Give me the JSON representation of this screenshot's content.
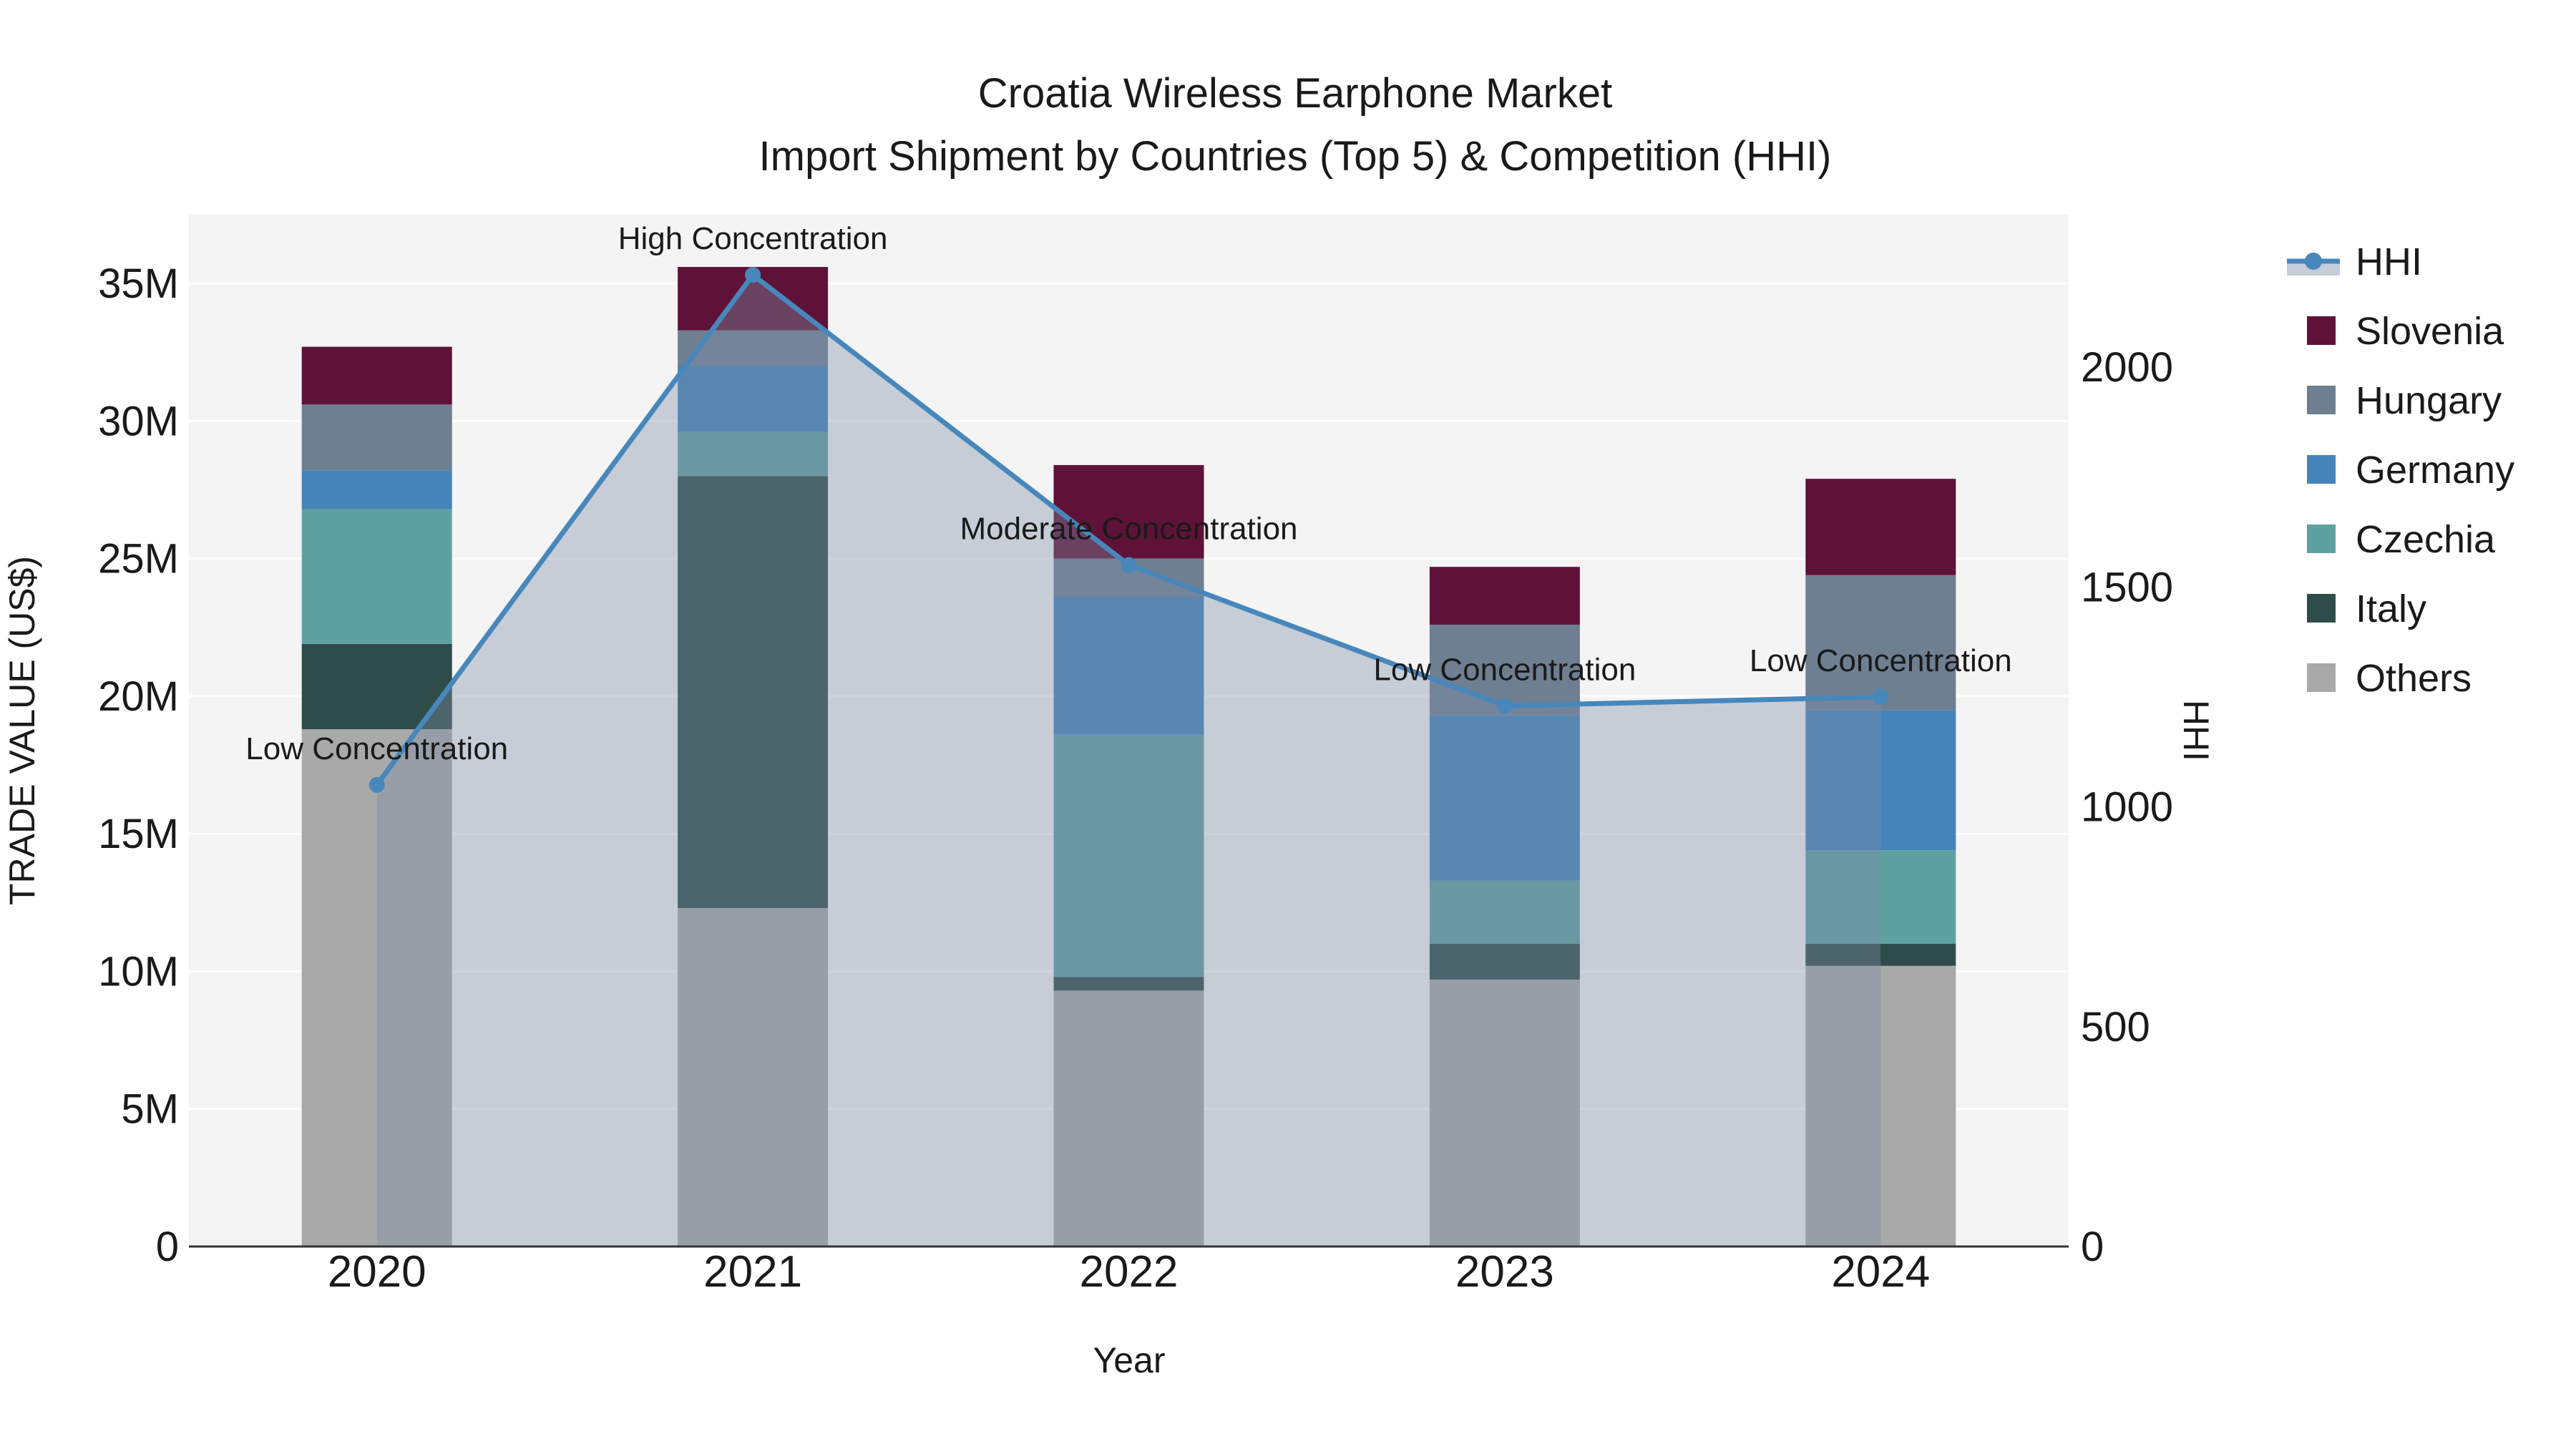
{
  "title": {
    "line1": "Croatia Wireless Earphone Market",
    "line2": "Import Shipment by Countries (Top 5) & Competition (HHI)"
  },
  "axes": {
    "x": {
      "title": "Year",
      "categories": [
        "2020",
        "2021",
        "2022",
        "2023",
        "2024"
      ]
    },
    "y_left": {
      "title": "TRADE VALUE (US$)",
      "tick_labels": [
        "0",
        "5M",
        "10M",
        "15M",
        "20M",
        "25M",
        "30M",
        "35M"
      ],
      "tick_values": [
        0,
        5,
        10,
        15,
        20,
        25,
        30,
        35
      ],
      "range": [
        0,
        37.5
      ],
      "unit": "million US$"
    },
    "y_right": {
      "title": "HHI",
      "tick_labels": [
        "0",
        "500",
        "1000",
        "1500",
        "2000"
      ],
      "tick_values": [
        0,
        500,
        1000,
        1500,
        2000
      ],
      "range": [
        0,
        2347
      ]
    }
  },
  "chart_data": {
    "type": "bar+line",
    "title": "Croatia Wireless Earphone Market — Import Shipment by Countries (Top 5) & Competition (HHI)",
    "xlabel": "Year",
    "ylabel_left": "TRADE VALUE (US$)",
    "ylabel_right": "HHI",
    "categories": [
      "2020",
      "2021",
      "2022",
      "2023",
      "2024"
    ],
    "stack_order_note": "series listed bottom-to-top of the stacked bars, values in millions of US$",
    "series": [
      {
        "name": "Others",
        "color": "#a9a9a9",
        "values": [
          18.8,
          12.3,
          9.3,
          9.7,
          10.2
        ]
      },
      {
        "name": "Italy",
        "color": "#2e4c49",
        "values": [
          3.1,
          15.7,
          0.5,
          1.3,
          0.8
        ]
      },
      {
        "name": "Czechia",
        "color": "#5fa1a1",
        "values": [
          4.9,
          1.6,
          8.8,
          2.3,
          3.4
        ]
      },
      {
        "name": "Germany",
        "color": "#4484b9",
        "values": [
          1.4,
          2.4,
          5.0,
          6.0,
          5.1
        ]
      },
      {
        "name": "Hungary",
        "color": "#6e7f91",
        "values": [
          2.4,
          1.3,
          1.4,
          3.3,
          4.9
        ]
      },
      {
        "name": "Slovenia",
        "color": "#5f1237",
        "values": [
          2.1,
          2.3,
          3.4,
          2.1,
          3.5
        ]
      }
    ],
    "bar_totals": [
      32.7,
      35.6,
      28.4,
      24.7,
      27.9
    ],
    "hhi_line": {
      "name": "HHI",
      "color": "#4787bb",
      "fill_color": "rgba(127,141,168,0.38)",
      "values": [
        1050,
        2210,
        1550,
        1230,
        1250
      ]
    },
    "annotations": [
      {
        "category": "2020",
        "label": "Low Concentration"
      },
      {
        "category": "2021",
        "label": "High Concentration"
      },
      {
        "category": "2022",
        "label": "Moderate Concentration"
      },
      {
        "category": "2023",
        "label": "Low Concentration"
      },
      {
        "category": "2024",
        "label": "Low Concentration"
      }
    ],
    "ylim_left": [
      0,
      37.5
    ],
    "ylim_right": [
      0,
      2347
    ],
    "grid": true,
    "legend_position": "right"
  },
  "legend": {
    "items": [
      {
        "label": "HHI",
        "type": "line",
        "color": "#4787bb",
        "fill": "#c5cdd9"
      },
      {
        "label": "Slovenia",
        "type": "swatch",
        "color": "#5f1237"
      },
      {
        "label": "Hungary",
        "type": "swatch",
        "color": "#6e7f91"
      },
      {
        "label": "Germany",
        "type": "swatch",
        "color": "#4484b9"
      },
      {
        "label": "Czechia",
        "type": "swatch",
        "color": "#5fa1a1"
      },
      {
        "label": "Italy",
        "type": "swatch",
        "color": "#2e4c49"
      },
      {
        "label": "Others",
        "type": "swatch",
        "color": "#a9a9a9"
      }
    ]
  },
  "colors": {
    "plot_background": "#f4f4f4",
    "page_background": "#ffffff",
    "gridline": "#ffffff",
    "axis_line": "#333333",
    "text": "#1a1a1a"
  }
}
